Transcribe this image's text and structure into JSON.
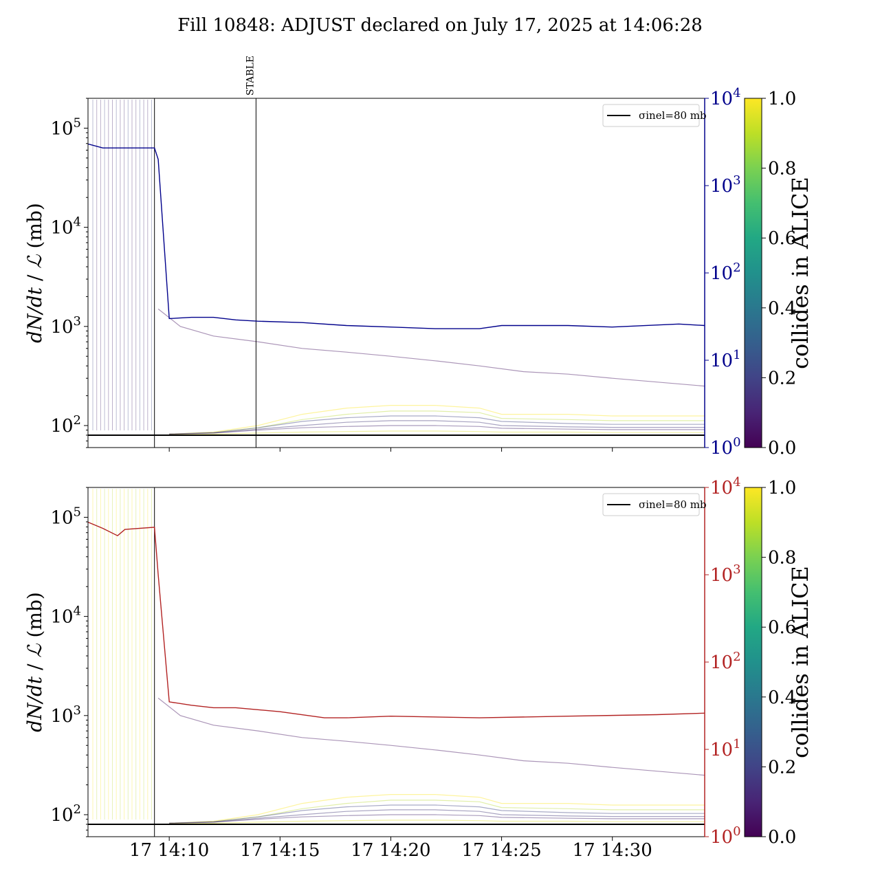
{
  "chart_data": {
    "title": "Fill 10848: ADJUST declared on July 17, 2025 at 14:06:28",
    "x_ticks": [
      "17 14:10",
      "17 14:15",
      "17 14:20",
      "17 14:25",
      "17 14:30"
    ],
    "x_range": [
      "14:06:20",
      "14:34:10"
    ],
    "panels": [
      {
        "type": "line",
        "y_scale": "log",
        "ylabel": "dN/dt / ℒ (mb)",
        "ylim": [
          60,
          200000
        ],
        "y_ticks": [
          "10^2",
          "10^3",
          "10^4",
          "10^5"
        ],
        "right_axis": {
          "scale": "log",
          "ylim": [
            1,
            10000
          ],
          "ticks": [
            "10^0",
            "10^1",
            "10^2",
            "10^3",
            "10^4"
          ],
          "color": "#00008b"
        },
        "legend": {
          "entries": [
            "σinel=80 mb"
          ],
          "placement": "upper right"
        },
        "reference_line": {
          "label": "σinel=80 mb",
          "value": 80
        },
        "vlines": [
          {
            "time": "14:09:20",
            "label": ""
          },
          {
            "time": "14:13:55",
            "label": "STABLE"
          }
        ],
        "main_series": {
          "color": "#00008b",
          "points": [
            [
              "14:06:20",
              3000
            ],
            [
              "14:07:00",
              2700
            ],
            [
              "14:08:00",
              2700
            ],
            [
              "14:09:20",
              2700
            ],
            [
              "14:09:30",
              2000
            ],
            [
              "14:10:00",
              30
            ],
            [
              "14:11:00",
              31
            ],
            [
              "14:12:00",
              31
            ],
            [
              "14:13:00",
              29
            ],
            [
              "14:14:00",
              28
            ],
            [
              "14:16:00",
              27
            ],
            [
              "14:18:00",
              25
            ],
            [
              "14:20:00",
              24
            ],
            [
              "14:22:00",
              23
            ],
            [
              "14:24:00",
              23
            ],
            [
              "14:25:00",
              25
            ],
            [
              "14:28:00",
              25
            ],
            [
              "14:30:00",
              24
            ],
            [
              "14:33:00",
              26
            ],
            [
              "14:34:10",
              25
            ]
          ]
        }
      },
      {
        "type": "line",
        "y_scale": "log",
        "ylabel": "dN/dt / ℒ (mb)",
        "ylim": [
          60,
          200000
        ],
        "y_ticks": [
          "10^2",
          "10^3",
          "10^4",
          "10^5"
        ],
        "right_axis": {
          "scale": "log",
          "ylim": [
            1,
            10000
          ],
          "ticks": [
            "10^0",
            "10^1",
            "10^2",
            "10^3",
            "10^4"
          ],
          "color": "#b22222"
        },
        "legend": {
          "entries": [
            "σinel=80 mb"
          ],
          "placement": "upper right"
        },
        "reference_line": {
          "label": "σinel=80 mb",
          "value": 80
        },
        "vlines": [
          {
            "time": "14:09:20",
            "label": ""
          }
        ],
        "main_series": {
          "color": "#b22222",
          "points": [
            [
              "14:06:20",
              4000
            ],
            [
              "14:07:00",
              3400
            ],
            [
              "14:07:40",
              2800
            ],
            [
              "14:08:00",
              3300
            ],
            [
              "14:09:20",
              3500
            ],
            [
              "14:09:30",
              1000
            ],
            [
              "14:10:00",
              35
            ],
            [
              "14:11:00",
              32
            ],
            [
              "14:12:00",
              30
            ],
            [
              "14:13:00",
              30
            ],
            [
              "14:15:00",
              27
            ],
            [
              "14:17:00",
              23
            ],
            [
              "14:18:00",
              23
            ],
            [
              "14:20:00",
              24
            ],
            [
              "14:24:00",
              23
            ],
            [
              "14:28:00",
              24
            ],
            [
              "14:32:00",
              25
            ],
            [
              "14:34:10",
              26
            ]
          ]
        }
      }
    ],
    "colorbar": {
      "label": "collides in ALICE",
      "range": [
        0,
        1
      ],
      "ticks": [
        "0.0",
        "0.2",
        "0.4",
        "0.6",
        "0.8",
        "1.0"
      ],
      "colormap": "viridis"
    },
    "background_series": [
      {
        "collides": 1.0,
        "points": [
          [
            "14:10:00",
            82
          ],
          [
            "14:12:00",
            86
          ],
          [
            "14:14:00",
            100
          ],
          [
            "14:16:00",
            130
          ],
          [
            "14:18:00",
            150
          ],
          [
            "14:20:00",
            160
          ],
          [
            "14:22:00",
            160
          ],
          [
            "14:24:00",
            150
          ],
          [
            "14:25:00",
            130
          ],
          [
            "14:28:00",
            130
          ],
          [
            "14:30:00",
            125
          ],
          [
            "14:34:10",
            125
          ]
        ]
      },
      {
        "collides": 0.9,
        "points": [
          [
            "14:10:00",
            82
          ],
          [
            "14:12:00",
            85
          ],
          [
            "14:14:00",
            95
          ],
          [
            "14:16:00",
            115
          ],
          [
            "14:18:00",
            130
          ],
          [
            "14:20:00",
            140
          ],
          [
            "14:22:00",
            140
          ],
          [
            "14:24:00",
            135
          ],
          [
            "14:25:00",
            118
          ],
          [
            "14:28:00",
            115
          ],
          [
            "14:30:00",
            112
          ],
          [
            "14:34:10",
            112
          ]
        ]
      },
      {
        "collides": 0.2,
        "points": [
          [
            "14:10:00",
            82
          ],
          [
            "14:12:00",
            85
          ],
          [
            "14:14:00",
            95
          ],
          [
            "14:16:00",
            110
          ],
          [
            "14:18:00",
            120
          ],
          [
            "14:20:00",
            125
          ],
          [
            "14:22:00",
            125
          ],
          [
            "14:24:00",
            120
          ],
          [
            "14:25:00",
            110
          ],
          [
            "14:28:00",
            105
          ],
          [
            "14:30:00",
            103
          ],
          [
            "14:34:10",
            103
          ]
        ]
      },
      {
        "collides": 0.15,
        "points": [
          [
            "14:10:00",
            82
          ],
          [
            "14:12:00",
            84
          ],
          [
            "14:14:00",
            92
          ],
          [
            "14:16:00",
            100
          ],
          [
            "14:18:00",
            108
          ],
          [
            "14:20:00",
            112
          ],
          [
            "14:22:00",
            112
          ],
          [
            "14:24:00",
            108
          ],
          [
            "14:25:00",
            100
          ],
          [
            "14:28:00",
            97
          ],
          [
            "14:30:00",
            96
          ],
          [
            "14:34:10",
            96
          ]
        ]
      },
      {
        "collides": 0.1,
        "points": [
          [
            "14:10:00",
            82
          ],
          [
            "14:12:00",
            84
          ],
          [
            "14:14:00",
            90
          ],
          [
            "14:16:00",
            95
          ],
          [
            "14:18:00",
            98
          ],
          [
            "14:20:00",
            100
          ],
          [
            "14:22:00",
            100
          ],
          [
            "14:24:00",
            98
          ],
          [
            "14:25:00",
            94
          ],
          [
            "14:28:00",
            92
          ],
          [
            "14:30:00",
            91
          ],
          [
            "14:34:10",
            91
          ]
        ]
      },
      {
        "collides": 0.95,
        "points": [
          [
            "14:10:00",
            81
          ],
          [
            "14:12:00",
            82
          ],
          [
            "14:14:00",
            84
          ],
          [
            "14:16:00",
            86
          ],
          [
            "14:18:00",
            87
          ],
          [
            "14:20:00",
            88
          ],
          [
            "14:22:00",
            88
          ],
          [
            "14:24:00",
            87
          ],
          [
            "14:25:00",
            86
          ],
          [
            "14:28:00",
            86
          ],
          [
            "14:30:00",
            85
          ],
          [
            "14:34:10",
            85
          ]
        ]
      },
      {
        "collides": 0.05,
        "points": [
          [
            "14:09:30",
            1500
          ],
          [
            "14:10:30",
            1000
          ],
          [
            "14:12:00",
            800
          ],
          [
            "14:14:00",
            700
          ],
          [
            "14:16:00",
            600
          ],
          [
            "14:18:00",
            550
          ],
          [
            "14:20:00",
            500
          ],
          [
            "14:22:00",
            450
          ],
          [
            "14:24:00",
            400
          ],
          [
            "14:26:00",
            350
          ],
          [
            "14:28:00",
            330
          ],
          [
            "14:30:00",
            300
          ],
          [
            "14:34:10",
            250
          ]
        ]
      }
    ]
  }
}
